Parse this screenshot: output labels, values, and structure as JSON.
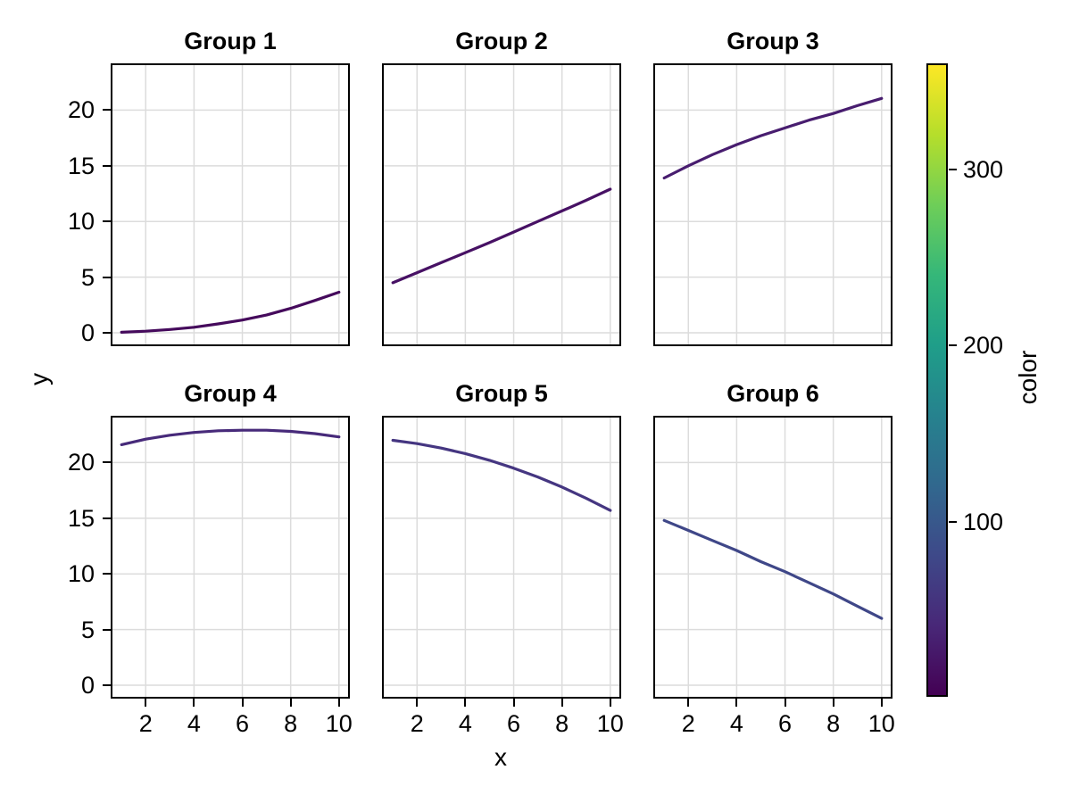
{
  "figure": {
    "background": "#ffffff",
    "style": {
      "grid_color": "#dcdcdc",
      "spine_color": "#000000",
      "text_color": "#000000",
      "line_width": 3.2
    }
  },
  "chart_data": {
    "type": "line",
    "layout": "2x3 facet grid, shared axes, colorbar on right",
    "xlabel": "x",
    "ylabel": "y",
    "x_ticks": [
      2,
      4,
      6,
      8,
      10
    ],
    "y_ticks": [
      0,
      5,
      10,
      15,
      20
    ],
    "xlim": [
      0.55,
      10.45
    ],
    "ylim": [
      -1.2,
      24.2
    ],
    "grid": true,
    "x": [
      1,
      2,
      3,
      4,
      5,
      6,
      7,
      8,
      9,
      10
    ],
    "facets": [
      {
        "title": "Group 1",
        "line_color": "#450a5c",
        "y": [
          0.05,
          0.15,
          0.3,
          0.5,
          0.8,
          1.15,
          1.6,
          2.2,
          2.9,
          3.65
        ]
      },
      {
        "title": "Group 2",
        "line_color": "#471164",
        "y": [
          4.5,
          5.4,
          6.3,
          7.2,
          8.1,
          9.05,
          10.0,
          10.95,
          11.9,
          12.9
        ]
      },
      {
        "title": "Group 3",
        "line_color": "#481d6f",
        "y": [
          13.9,
          15.0,
          16.0,
          16.9,
          17.7,
          18.4,
          19.1,
          19.7,
          20.4,
          21.05
        ]
      },
      {
        "title": "Group 4",
        "line_color": "#472a7a",
        "y": [
          21.6,
          22.1,
          22.45,
          22.7,
          22.85,
          22.9,
          22.9,
          22.8,
          22.6,
          22.3
        ]
      },
      {
        "title": "Group 5",
        "line_color": "#453681",
        "y": [
          22.0,
          21.7,
          21.3,
          20.8,
          20.2,
          19.5,
          18.7,
          17.8,
          16.8,
          15.7
        ]
      },
      {
        "title": "Group 6",
        "line_color": "#3f4788",
        "y": [
          14.8,
          13.9,
          13.0,
          12.1,
          11.1,
          10.2,
          9.2,
          8.2,
          7.1,
          6.0
        ]
      }
    ],
    "colorbar": {
      "label": "color",
      "ticks": [
        100,
        200,
        300
      ],
      "range": [
        1,
        360
      ],
      "colormap": "viridis",
      "stops": [
        "#440154",
        "#482878",
        "#3e4989",
        "#31688e",
        "#26828e",
        "#1f9e89",
        "#35b779",
        "#6ece58",
        "#b5de2b",
        "#fde725"
      ]
    }
  }
}
